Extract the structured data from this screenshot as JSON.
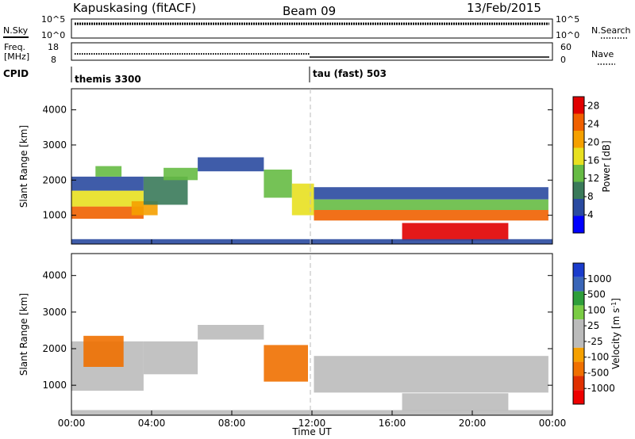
{
  "header": {
    "station": "Kapuskasing (fitACF)",
    "beam": "Beam 09",
    "date": "13/Feb/2015"
  },
  "top_panels": {
    "nsky_label": "N.Sky",
    "nsky_ticks": [
      "10^5",
      "10^0"
    ],
    "nsearch_label": "N.Search",
    "nsearch_ticks": [
      "10^5",
      "10^0"
    ],
    "freq_label_1": "Freq.",
    "freq_label_2": "[MHz]",
    "freq_ticks": [
      "18",
      "8"
    ],
    "nave_label": "Nave",
    "nave_ticks": [
      "60",
      "0"
    ],
    "cpid_label": "CPID",
    "cpid_modes": [
      {
        "name": "themis 3300",
        "start_hour": 0
      },
      {
        "name": "tau (fast) 503",
        "start_hour": 12
      }
    ]
  },
  "colors": {
    "power_scale": [
      "#0000ff",
      "#2a4aa0",
      "#3a7a5a",
      "#66bb44",
      "#e8e020",
      "#f5a000",
      "#f06000",
      "#e00000"
    ],
    "velocity_scale": [
      "#1a3ccc",
      "#3a66b8",
      "#2e9e3a",
      "#7acc44",
      "#bbbbbb",
      "#bbbbbb",
      "#f5a000",
      "#f07000",
      "#e03000",
      "#ee0000"
    ]
  },
  "chart_data": [
    {
      "type": "heatmap",
      "title": "Power",
      "xlabel": "",
      "ylabel": "Slant Range [km]",
      "xlim": [
        0,
        24
      ],
      "ylim": [
        180,
        4600
      ],
      "x_ticks": [
        "00:00",
        "04:00",
        "08:00",
        "12:00",
        "16:00",
        "20:00",
        "00:00"
      ],
      "y_ticks": [
        "1000",
        "2000",
        "3000",
        "4000"
      ],
      "colorbar_label": "Power [dB]",
      "colorbar_ticks": [
        "4",
        "8",
        "12",
        "16",
        "20",
        "24",
        "28"
      ],
      "colorbar_range": [
        0,
        30
      ],
      "bands": [
        {
          "t0": 0.0,
          "t1": 3.6,
          "r0": 900,
          "r1": 1250,
          "level": 6
        },
        {
          "t0": 0.0,
          "t1": 3.6,
          "r0": 1250,
          "r1": 1700,
          "level": 4
        },
        {
          "t0": 0.0,
          "t1": 3.6,
          "r0": 1700,
          "r1": 2100,
          "level": 1
        },
        {
          "t0": 1.2,
          "t1": 2.5,
          "r0": 2100,
          "r1": 2400,
          "level": 3
        },
        {
          "t0": 3.0,
          "t1": 4.3,
          "r0": 1000,
          "r1": 1400,
          "level": 5
        },
        {
          "t0": 3.6,
          "t1": 5.8,
          "r0": 1300,
          "r1": 2100,
          "level": 2
        },
        {
          "t0": 4.6,
          "t1": 6.3,
          "r0": 2000,
          "r1": 2350,
          "level": 3
        },
        {
          "t0": 6.3,
          "t1": 9.6,
          "r0": 2250,
          "r1": 2650,
          "level": 1
        },
        {
          "t0": 9.6,
          "t1": 11.0,
          "r0": 1500,
          "r1": 2300,
          "level": 3
        },
        {
          "t0": 11.0,
          "t1": 12.1,
          "r0": 1000,
          "r1": 1900,
          "level": 4
        },
        {
          "t0": 12.1,
          "t1": 23.8,
          "r0": 1450,
          "r1": 1800,
          "level": 1
        },
        {
          "t0": 12.1,
          "t1": 23.8,
          "r0": 1150,
          "r1": 1450,
          "level": 3
        },
        {
          "t0": 12.1,
          "t1": 23.8,
          "r0": 850,
          "r1": 1150,
          "level": 6
        },
        {
          "t0": 16.5,
          "t1": 21.8,
          "r0": 280,
          "r1": 780,
          "level": 7
        },
        {
          "t0": 0.0,
          "t1": 24.0,
          "r0": 180,
          "r1": 320,
          "level": 1
        }
      ]
    },
    {
      "type": "heatmap",
      "title": "Velocity",
      "xlabel": "Time UT",
      "ylabel": "Slant Range [km]",
      "xlim": [
        0,
        24
      ],
      "ylim": [
        180,
        4600
      ],
      "x_ticks": [
        "00:00",
        "04:00",
        "08:00",
        "12:00",
        "16:00",
        "20:00",
        "00:00"
      ],
      "y_ticks": [
        "1000",
        "2000",
        "3000",
        "4000"
      ],
      "colorbar_label": "Velocity [m s^-1]",
      "colorbar_ticks": [
        "1000",
        "500",
        "100",
        "25",
        "-25",
        "-100",
        "-500",
        "-1000"
      ],
      "bands": [
        {
          "t0": 0.0,
          "t1": 3.6,
          "r0": 850,
          "r1": 2200,
          "level": 4
        },
        {
          "t0": 0.6,
          "t1": 2.6,
          "r0": 1500,
          "r1": 2350,
          "level": 7
        },
        {
          "t0": 3.6,
          "t1": 6.3,
          "r0": 1300,
          "r1": 2200,
          "level": 4
        },
        {
          "t0": 6.3,
          "t1": 9.6,
          "r0": 2250,
          "r1": 2650,
          "level": 4
        },
        {
          "t0": 9.6,
          "t1": 11.8,
          "r0": 1100,
          "r1": 2100,
          "level": 7
        },
        {
          "t0": 12.1,
          "t1": 23.8,
          "r0": 800,
          "r1": 1800,
          "level": 4
        },
        {
          "t0": 16.5,
          "t1": 21.8,
          "r0": 300,
          "r1": 780,
          "level": 4
        },
        {
          "t0": 0.0,
          "t1": 24.0,
          "r0": 180,
          "r1": 320,
          "level": 4
        }
      ]
    }
  ]
}
